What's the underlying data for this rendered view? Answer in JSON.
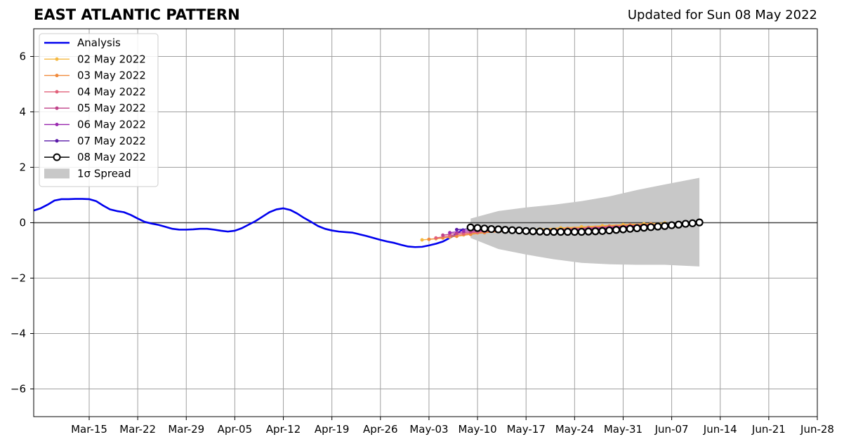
{
  "header": {
    "title": "EAST ATLANTIC PATTERN",
    "updated": "Updated for Sun 08 May 2022"
  },
  "chart_data": {
    "type": "line",
    "title": "EAST ATLANTIC PATTERN",
    "subtitle": "Updated for Sun 08 May 2022",
    "xlabel": "",
    "ylabel": "",
    "xlim": [
      "2022-03-07",
      "2022-06-28"
    ],
    "ylim": [
      -7,
      7
    ],
    "grid": true,
    "legend_position": "top-left",
    "x_ticks": [
      "Mar-15",
      "Mar-22",
      "Mar-29",
      "Apr-05",
      "Apr-12",
      "Apr-19",
      "Apr-26",
      "May-03",
      "May-10",
      "May-17",
      "May-24",
      "May-31",
      "Jun-07",
      "Jun-14",
      "Jun-21",
      "Jun-28"
    ],
    "x_tick_dates": [
      "2022-03-15",
      "2022-03-22",
      "2022-03-29",
      "2022-04-05",
      "2022-04-12",
      "2022-04-19",
      "2022-04-26",
      "2022-05-03",
      "2022-05-10",
      "2022-05-17",
      "2022-05-24",
      "2022-05-31",
      "2022-06-07",
      "2022-06-14",
      "2022-06-21",
      "2022-06-28"
    ],
    "y_ticks": [
      6,
      4,
      2,
      0,
      -2,
      -4,
      -6
    ],
    "y_tick_labels": [
      "6",
      "4",
      "2",
      "0",
      "−2",
      "−4",
      "−6"
    ],
    "series": [
      {
        "name": "Analysis",
        "color": "#0000ee",
        "style": "line",
        "x": [
          "2022-03-07",
          "2022-03-08",
          "2022-03-09",
          "2022-03-10",
          "2022-03-11",
          "2022-03-12",
          "2022-03-13",
          "2022-03-14",
          "2022-03-15",
          "2022-03-16",
          "2022-03-17",
          "2022-03-18",
          "2022-03-19",
          "2022-03-20",
          "2022-03-21",
          "2022-03-22",
          "2022-03-23",
          "2022-03-24",
          "2022-03-25",
          "2022-03-26",
          "2022-03-27",
          "2022-03-28",
          "2022-03-29",
          "2022-03-30",
          "2022-03-31",
          "2022-04-01",
          "2022-04-02",
          "2022-04-03",
          "2022-04-04",
          "2022-04-05",
          "2022-04-06",
          "2022-04-07",
          "2022-04-08",
          "2022-04-09",
          "2022-04-10",
          "2022-04-11",
          "2022-04-12",
          "2022-04-13",
          "2022-04-14",
          "2022-04-15",
          "2022-04-16",
          "2022-04-17",
          "2022-04-18",
          "2022-04-19",
          "2022-04-20",
          "2022-04-21",
          "2022-04-22",
          "2022-04-23",
          "2022-04-24",
          "2022-04-25",
          "2022-04-26",
          "2022-04-27",
          "2022-04-28",
          "2022-04-29",
          "2022-04-30",
          "2022-05-01",
          "2022-05-02",
          "2022-05-03",
          "2022-05-04",
          "2022-05-05",
          "2022-05-06",
          "2022-05-07",
          "2022-05-08"
        ],
        "values": [
          0.44,
          0.52,
          0.65,
          0.8,
          0.85,
          0.85,
          0.86,
          0.86,
          0.85,
          0.78,
          0.62,
          0.48,
          0.42,
          0.38,
          0.28,
          0.15,
          0.03,
          -0.03,
          -0.08,
          -0.15,
          -0.22,
          -0.25,
          -0.25,
          -0.24,
          -0.22,
          -0.22,
          -0.25,
          -0.29,
          -0.32,
          -0.29,
          -0.2,
          -0.07,
          0.06,
          0.22,
          0.38,
          0.48,
          0.52,
          0.46,
          0.33,
          0.17,
          0.03,
          -0.12,
          -0.22,
          -0.28,
          -0.32,
          -0.34,
          -0.36,
          -0.42,
          -0.48,
          -0.55,
          -0.62,
          -0.68,
          -0.73,
          -0.8,
          -0.86,
          -0.88,
          -0.87,
          -0.82,
          -0.76,
          -0.68,
          -0.55,
          -0.4,
          -0.22
        ]
      },
      {
        "name": "02 May 2022",
        "color": "#f5b942",
        "style": "small-markers",
        "x": [
          "2022-05-02",
          "2022-05-04",
          "2022-05-06",
          "2022-05-08",
          "2022-05-10",
          "2022-05-13",
          "2022-05-16",
          "2022-05-19",
          "2022-05-22",
          "2022-05-25",
          "2022-05-28",
          "2022-05-31",
          "2022-06-03",
          "2022-06-06"
        ],
        "values": [
          -0.62,
          -0.58,
          -0.52,
          -0.44,
          -0.37,
          -0.3,
          -0.26,
          -0.23,
          -0.19,
          -0.15,
          -0.11,
          -0.07,
          -0.04,
          -0.01
        ]
      },
      {
        "name": "03 May 2022",
        "color": "#f08a3c",
        "style": "small-markers",
        "x": [
          "2022-05-03",
          "2022-05-05",
          "2022-05-07",
          "2022-05-09",
          "2022-05-11",
          "2022-05-14",
          "2022-05-17",
          "2022-05-20",
          "2022-05-23",
          "2022-05-26",
          "2022-05-29",
          "2022-06-01",
          "2022-06-04"
        ],
        "values": [
          -0.6,
          -0.55,
          -0.49,
          -0.42,
          -0.36,
          -0.31,
          -0.28,
          -0.25,
          -0.21,
          -0.17,
          -0.12,
          -0.08,
          -0.04
        ]
      },
      {
        "name": "04 May 2022",
        "color": "#e2617a",
        "style": "small-markers",
        "x": [
          "2022-05-04",
          "2022-05-06",
          "2022-05-08",
          "2022-05-10",
          "2022-05-12",
          "2022-05-15",
          "2022-05-18",
          "2022-05-21",
          "2022-05-24",
          "2022-05-27",
          "2022-05-30",
          "2022-06-02",
          "2022-06-05"
        ],
        "values": [
          -0.55,
          -0.47,
          -0.4,
          -0.34,
          -0.3,
          -0.28,
          -0.27,
          -0.25,
          -0.22,
          -0.18,
          -0.14,
          -0.1,
          -0.06
        ]
      },
      {
        "name": "05 May 2022",
        "color": "#c0438a",
        "style": "small-markers",
        "x": [
          "2022-05-05",
          "2022-05-07",
          "2022-05-09",
          "2022-05-11",
          "2022-05-14",
          "2022-05-17",
          "2022-05-20",
          "2022-05-23",
          "2022-05-26",
          "2022-05-29",
          "2022-06-01",
          "2022-06-04"
        ],
        "values": [
          -0.45,
          -0.38,
          -0.33,
          -0.31,
          -0.3,
          -0.29,
          -0.27,
          -0.24,
          -0.2,
          -0.16,
          -0.12,
          -0.08
        ]
      },
      {
        "name": "06 May 2022",
        "color": "#9b2bb0",
        "style": "small-markers",
        "x": [
          "2022-05-06",
          "2022-05-08",
          "2022-05-10",
          "2022-05-13",
          "2022-05-16",
          "2022-05-19",
          "2022-05-22",
          "2022-05-25",
          "2022-05-28",
          "2022-05-31",
          "2022-06-03"
        ],
        "values": [
          -0.36,
          -0.3,
          -0.27,
          -0.28,
          -0.3,
          -0.31,
          -0.29,
          -0.25,
          -0.2,
          -0.15,
          -0.1
        ]
      },
      {
        "name": "07 May 2022",
        "color": "#5a1aa8",
        "style": "small-markers",
        "x": [
          "2022-05-07",
          "2022-05-09",
          "2022-05-11",
          "2022-05-14",
          "2022-05-17",
          "2022-05-20",
          "2022-05-23",
          "2022-05-26",
          "2022-05-29",
          "2022-06-01"
        ],
        "values": [
          -0.25,
          -0.22,
          -0.23,
          -0.26,
          -0.29,
          -0.3,
          -0.29,
          -0.26,
          -0.21,
          -0.16
        ]
      },
      {
        "name": "08 May 2022",
        "color": "#000000",
        "style": "open-circles",
        "x": [
          "2022-05-09",
          "2022-05-10",
          "2022-05-11",
          "2022-05-12",
          "2022-05-13",
          "2022-05-14",
          "2022-05-15",
          "2022-05-16",
          "2022-05-17",
          "2022-05-18",
          "2022-05-19",
          "2022-05-20",
          "2022-05-21",
          "2022-05-22",
          "2022-05-23",
          "2022-05-24",
          "2022-05-25",
          "2022-05-26",
          "2022-05-27",
          "2022-05-28",
          "2022-05-29",
          "2022-05-30",
          "2022-05-31",
          "2022-06-01",
          "2022-06-02",
          "2022-06-03",
          "2022-06-04",
          "2022-06-05",
          "2022-06-06",
          "2022-06-07",
          "2022-06-08",
          "2022-06-09",
          "2022-06-10",
          "2022-06-11"
        ],
        "values": [
          -0.17,
          -0.19,
          -0.21,
          -0.23,
          -0.24,
          -0.26,
          -0.27,
          -0.28,
          -0.3,
          -0.31,
          -0.32,
          -0.33,
          -0.33,
          -0.33,
          -0.33,
          -0.33,
          -0.33,
          -0.32,
          -0.31,
          -0.3,
          -0.28,
          -0.26,
          -0.24,
          -0.22,
          -0.2,
          -0.18,
          -0.16,
          -0.14,
          -0.12,
          -0.09,
          -0.07,
          -0.04,
          -0.02,
          0.01
        ]
      }
    ],
    "spread": {
      "name": "1σ Spread",
      "color": "#c8c8c8",
      "x": [
        "2022-05-09",
        "2022-05-13",
        "2022-05-17",
        "2022-05-21",
        "2022-05-25",
        "2022-05-29",
        "2022-06-02",
        "2022-06-06",
        "2022-06-11"
      ],
      "upper": [
        0.15,
        0.42,
        0.55,
        0.65,
        0.78,
        0.95,
        1.18,
        1.38,
        1.62
      ],
      "lower": [
        -0.55,
        -0.95,
        -1.15,
        -1.32,
        -1.45,
        -1.5,
        -1.52,
        -1.52,
        -1.58
      ]
    }
  }
}
